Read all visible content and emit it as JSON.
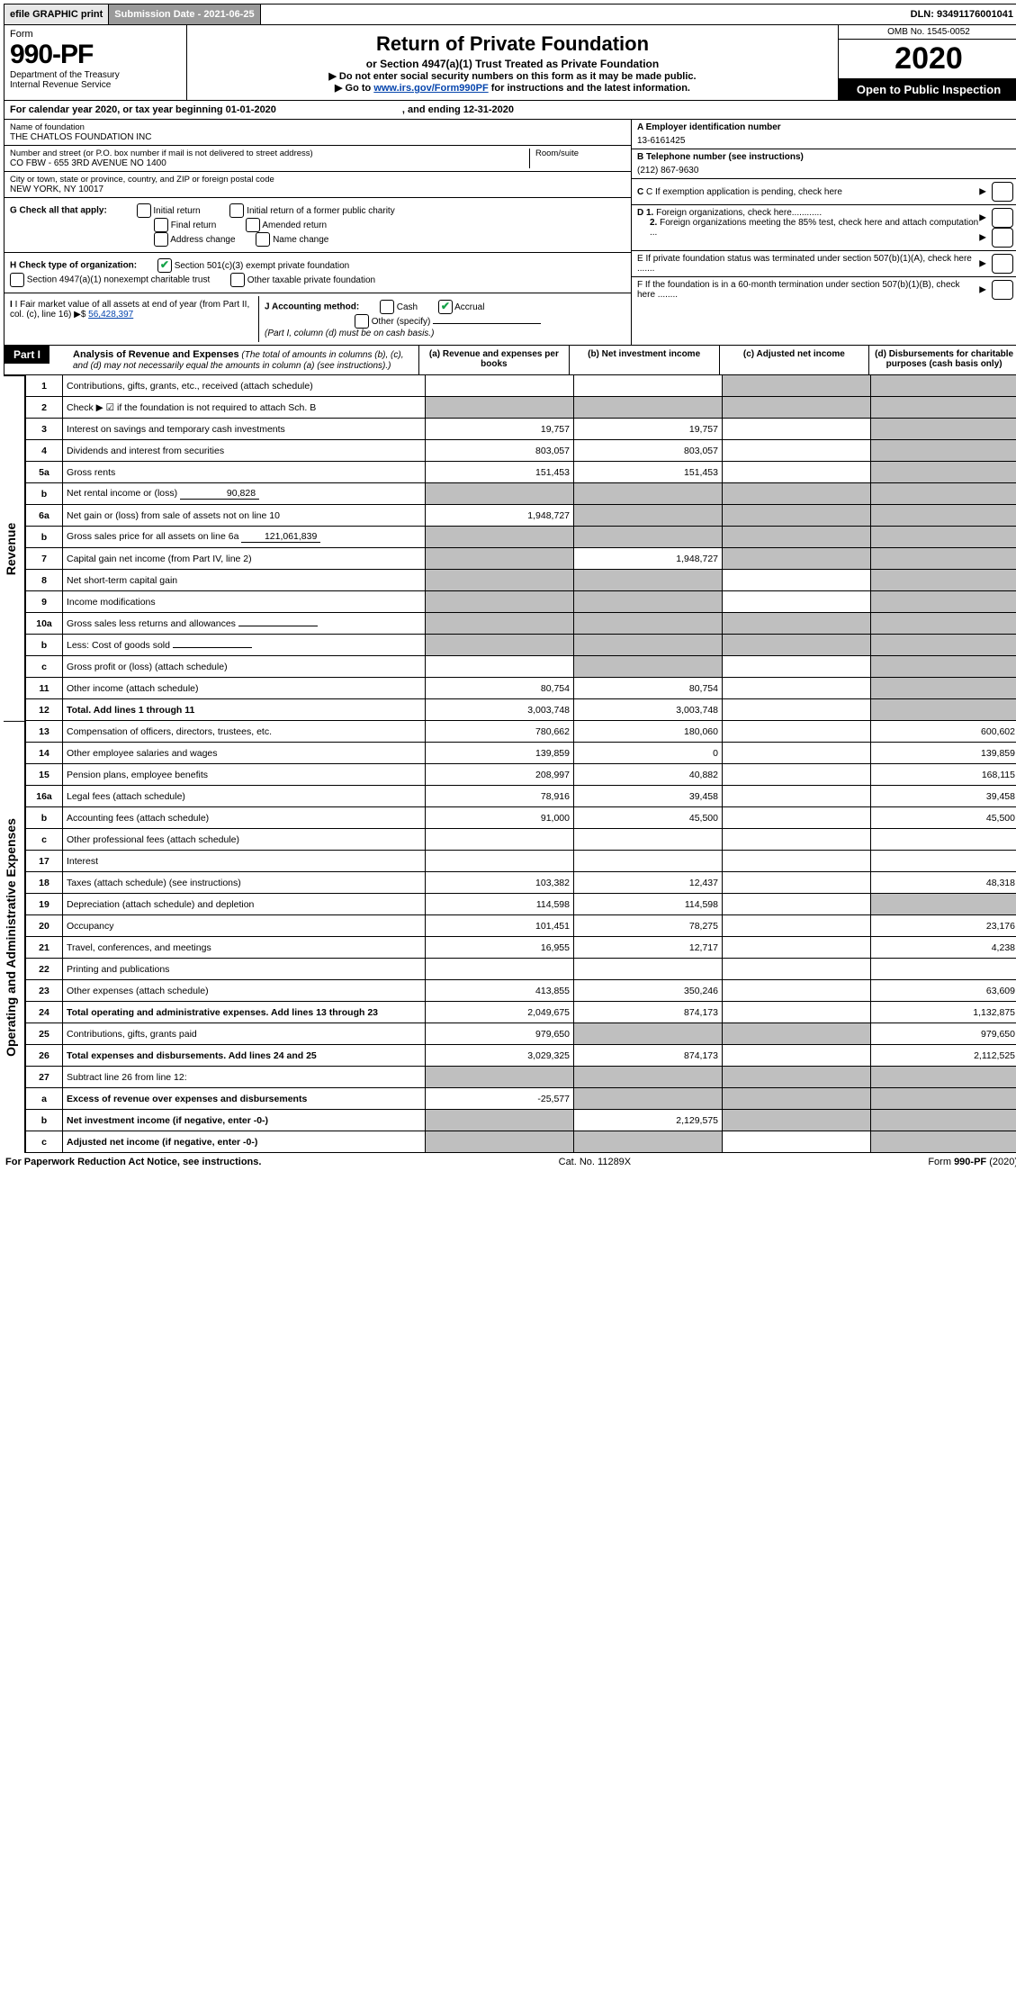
{
  "topbar": {
    "efile": "efile GRAPHIC print",
    "submission": "Submission Date - 2021-06-25",
    "dln": "DLN: 93491176001041"
  },
  "header": {
    "form_word": "Form",
    "form_num": "990-PF",
    "dept1": "Department of the Treasury",
    "dept2": "Internal Revenue Service",
    "title": "Return of Private Foundation",
    "subtitle": "or Section 4947(a)(1) Trust Treated as Private Foundation",
    "note1": "▶ Do not enter social security numbers on this form as it may be made public.",
    "note2_pre": "▶ Go to ",
    "note2_link": "www.irs.gov/Form990PF",
    "note2_post": " for instructions and the latest information.",
    "omb": "OMB No. 1545-0052",
    "year": "2020",
    "open": "Open to Public Inspection"
  },
  "calendar": {
    "text": "For calendar year 2020, or tax year beginning 01-01-2020",
    "ending": ", and ending 12-31-2020"
  },
  "ident": {
    "name_lbl": "Name of foundation",
    "name": "THE CHATLOS FOUNDATION INC",
    "addr_lbl": "Number and street (or P.O. box number if mail is not delivered to street address)",
    "addr": "CO FBW - 655 3RD AVENUE NO 1400",
    "room_lbl": "Room/suite",
    "city_lbl": "City or town, state or province, country, and ZIP or foreign postal code",
    "city": "NEW YORK, NY  10017",
    "A_lbl": "A Employer identification number",
    "A_val": "13-6161425",
    "B_lbl": "B Telephone number (see instructions)",
    "B_val": "(212) 867-9630",
    "C_lbl": "C If exemption application is pending, check here",
    "D1": "D 1. Foreign organizations, check here............",
    "D2": "2. Foreign organizations meeting the 85% test, check here and attach computation ...",
    "E": "E  If private foundation status was terminated under section 507(b)(1)(A), check here .......",
    "F": "F  If the foundation is in a 60-month termination under section 507(b)(1)(B), check here ........"
  },
  "G": {
    "lbl": "G Check all that apply:",
    "opts": [
      "Initial return",
      "Initial return of a former public charity",
      "Final return",
      "Amended return",
      "Address change",
      "Name change"
    ]
  },
  "H": {
    "lbl": "H Check type of organization:",
    "opt1": "Section 501(c)(3) exempt private foundation",
    "opt2": "Section 4947(a)(1) nonexempt charitable trust",
    "opt3": "Other taxable private foundation"
  },
  "I": {
    "lbl": "I Fair market value of all assets at end of year (from Part II, col. (c), line 16) ▶$",
    "val": "56,428,397"
  },
  "J": {
    "lbl": "J Accounting method:",
    "cash": "Cash",
    "accrual": "Accrual",
    "other": "Other (specify)",
    "note": "(Part I, column (d) must be on cash basis.)"
  },
  "part1": {
    "tag": "Part I",
    "title": "Analysis of Revenue and Expenses",
    "sub": " (The total of amounts in columns (b), (c), and (d) may not necessarily equal the amounts in column (a) (see instructions).)",
    "cols": {
      "a": "(a)   Revenue and expenses per books",
      "b": "(b)  Net investment income",
      "c": "(c)  Adjusted net income",
      "d": "(d)  Disbursements for charitable purposes (cash basis only)"
    }
  },
  "side": {
    "rev": "Revenue",
    "exp": "Operating and Administrative Expenses"
  },
  "rows": [
    {
      "n": "1",
      "d": "Contributions, gifts, grants, etc., received (attach schedule)",
      "a": "",
      "b": "",
      "c": "s",
      "ds": "s"
    },
    {
      "n": "2",
      "d": "Check ▶ ☑ if the foundation is not required to attach Sch. B",
      "a": "s",
      "b": "s",
      "c": "s",
      "ds": "s",
      "bold_not": true
    },
    {
      "n": "3",
      "d": "Interest on savings and temporary cash investments",
      "a": "19,757",
      "b": "19,757",
      "c": "",
      "ds": "s"
    },
    {
      "n": "4",
      "d": "Dividends and interest from securities",
      "a": "803,057",
      "b": "803,057",
      "c": "",
      "ds": "s"
    },
    {
      "n": "5a",
      "d": "Gross rents",
      "a": "151,453",
      "b": "151,453",
      "c": "",
      "ds": "s"
    },
    {
      "n": "b",
      "d": "Net rental income or (loss)",
      "inline": "90,828",
      "a": "s",
      "b": "s",
      "c": "s",
      "ds": "s"
    },
    {
      "n": "6a",
      "d": "Net gain or (loss) from sale of assets not on line 10",
      "a": "1,948,727",
      "b": "s",
      "c": "s",
      "ds": "s"
    },
    {
      "n": "b",
      "d": "Gross sales price for all assets on line 6a",
      "inline": "121,061,839",
      "a": "s",
      "b": "s",
      "c": "s",
      "ds": "s"
    },
    {
      "n": "7",
      "d": "Capital gain net income (from Part IV, line 2)",
      "a": "s",
      "b": "1,948,727",
      "c": "s",
      "ds": "s"
    },
    {
      "n": "8",
      "d": "Net short-term capital gain",
      "a": "s",
      "b": "s",
      "c": "",
      "ds": "s"
    },
    {
      "n": "9",
      "d": "Income modifications",
      "a": "s",
      "b": "s",
      "c": "",
      "ds": "s"
    },
    {
      "n": "10a",
      "d": "Gross sales less returns and allowances",
      "inline": "",
      "a": "s",
      "b": "s",
      "c": "s",
      "ds": "s"
    },
    {
      "n": "b",
      "d": "Less: Cost of goods sold",
      "inline": "",
      "a": "s",
      "b": "s",
      "c": "s",
      "ds": "s"
    },
    {
      "n": "c",
      "d": "Gross profit or (loss) (attach schedule)",
      "a": "",
      "b": "s",
      "c": "",
      "ds": "s"
    },
    {
      "n": "11",
      "d": "Other income (attach schedule)",
      "a": "80,754",
      "b": "80,754",
      "c": "",
      "ds": "s"
    },
    {
      "n": "12",
      "d": "Total. Add lines 1 through 11",
      "a": "3,003,748",
      "b": "3,003,748",
      "c": "",
      "ds": "s",
      "bold": true
    },
    {
      "n": "13",
      "d": "Compensation of officers, directors, trustees, etc.",
      "a": "780,662",
      "b": "180,060",
      "c": "",
      "ds": "600,602"
    },
    {
      "n": "14",
      "d": "Other employee salaries and wages",
      "a": "139,859",
      "b": "0",
      "c": "",
      "ds": "139,859"
    },
    {
      "n": "15",
      "d": "Pension plans, employee benefits",
      "a": "208,997",
      "b": "40,882",
      "c": "",
      "ds": "168,115"
    },
    {
      "n": "16a",
      "d": "Legal fees (attach schedule)",
      "a": "78,916",
      "b": "39,458",
      "c": "",
      "ds": "39,458"
    },
    {
      "n": "b",
      "d": "Accounting fees (attach schedule)",
      "a": "91,000",
      "b": "45,500",
      "c": "",
      "ds": "45,500"
    },
    {
      "n": "c",
      "d": "Other professional fees (attach schedule)",
      "a": "",
      "b": "",
      "c": "",
      "ds": ""
    },
    {
      "n": "17",
      "d": "Interest",
      "a": "",
      "b": "",
      "c": "",
      "ds": ""
    },
    {
      "n": "18",
      "d": "Taxes (attach schedule) (see instructions)",
      "a": "103,382",
      "b": "12,437",
      "c": "",
      "ds": "48,318"
    },
    {
      "n": "19",
      "d": "Depreciation (attach schedule) and depletion",
      "a": "114,598",
      "b": "114,598",
      "c": "",
      "ds": "s"
    },
    {
      "n": "20",
      "d": "Occupancy",
      "a": "101,451",
      "b": "78,275",
      "c": "",
      "ds": "23,176"
    },
    {
      "n": "21",
      "d": "Travel, conferences, and meetings",
      "a": "16,955",
      "b": "12,717",
      "c": "",
      "ds": "4,238"
    },
    {
      "n": "22",
      "d": "Printing and publications",
      "a": "",
      "b": "",
      "c": "",
      "ds": ""
    },
    {
      "n": "23",
      "d": "Other expenses (attach schedule)",
      "a": "413,855",
      "b": "350,246",
      "c": "",
      "ds": "63,609"
    },
    {
      "n": "24",
      "d": "Total operating and administrative expenses. Add lines 13 through 23",
      "a": "2,049,675",
      "b": "874,173",
      "c": "",
      "ds": "1,132,875",
      "bold": true
    },
    {
      "n": "25",
      "d": "Contributions, gifts, grants paid",
      "a": "979,650",
      "b": "s",
      "c": "s",
      "ds": "979,650"
    },
    {
      "n": "26",
      "d": "Total expenses and disbursements. Add lines 24 and 25",
      "a": "3,029,325",
      "b": "874,173",
      "c": "",
      "ds": "2,112,525",
      "bold": true
    },
    {
      "n": "27",
      "d": "Subtract line 26 from line 12:",
      "a": "s",
      "b": "s",
      "c": "s",
      "ds": "s"
    },
    {
      "n": "a",
      "d": "Excess of revenue over expenses and disbursements",
      "a": "-25,577",
      "b": "s",
      "c": "s",
      "ds": "s",
      "bold": true
    },
    {
      "n": "b",
      "d": "Net investment income (if negative, enter -0-)",
      "a": "s",
      "b": "2,129,575",
      "c": "s",
      "ds": "s",
      "bold": true
    },
    {
      "n": "c",
      "d": "Adjusted net income (if negative, enter -0-)",
      "a": "s",
      "b": "s",
      "c": "",
      "ds": "s",
      "bold": true
    }
  ],
  "footer": {
    "left": "For Paperwork Reduction Act Notice, see instructions.",
    "mid": "Cat. No. 11289X",
    "right": "Form 990-PF (2020)"
  },
  "colors": {
    "check_green": "#16a34a",
    "link_blue": "#0645ad",
    "shade_gray": "#bfbfbf"
  }
}
